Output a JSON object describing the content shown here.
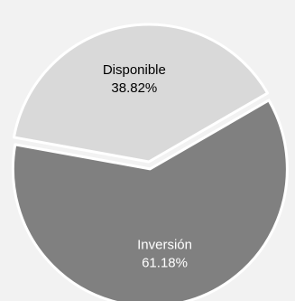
{
  "chart_data": {
    "type": "pie",
    "categories": [
      "Disponible",
      "Inversión"
    ],
    "values": [
      38.82,
      61.18
    ],
    "labels": [
      {
        "name": "Disponible",
        "percent": "38.82%"
      },
      {
        "name": "Inversión",
        "percent": "61.18%"
      }
    ],
    "colors": [
      "#d9d9d9",
      "#808080"
    ],
    "label_colors": [
      "#000000",
      "#ffffff"
    ],
    "background": "#f2f2f2",
    "edge_color": "#ffffff",
    "legend": "none",
    "title": "",
    "exploded": "Inversión"
  }
}
